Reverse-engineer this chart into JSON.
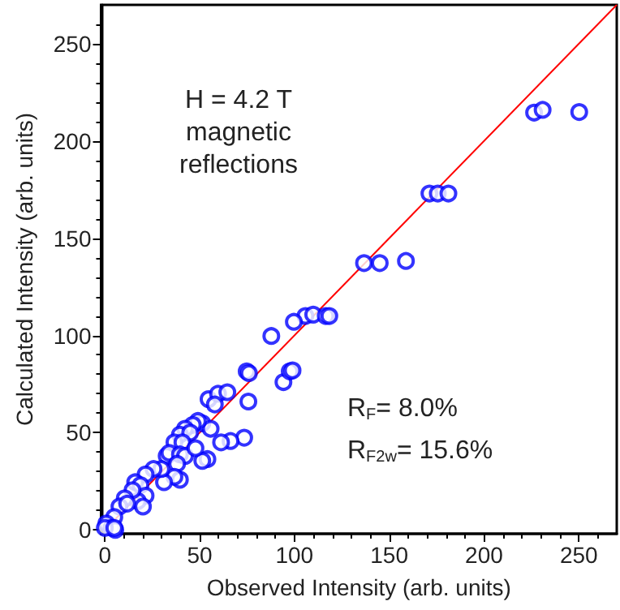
{
  "chart_data": {
    "type": "scatter",
    "xlabel": "Observed Intensity (arb. units)",
    "ylabel": "Calculated Intensity (arb. units)",
    "annotations": [
      "H = 4.2 T\nmagnetic\nreflections",
      "R$_{F}$= 8.0%",
      "R$_{F2w}$= 15.6%"
    ],
    "xlim": [
      -2,
      270
    ],
    "ylim": [
      -2,
      270
    ],
    "xticks": [
      0,
      50,
      100,
      150,
      200,
      250
    ],
    "yticks": [
      0,
      50,
      100,
      150,
      200,
      250
    ],
    "grid": false,
    "marker": "circle",
    "series": [
      {
        "color": "#0000ff",
        "x": [
          226.4,
          230.9,
          250.2,
          171.2,
          175.6,
          181.2,
          136.7,
          145,
          158.8,
          105.8,
          109.9,
          116.5,
          118.4,
          87.8,
          99.7,
          94.2,
          97.5,
          99,
          74.8,
          76,
          75.7,
          73.5,
          66.3,
          61.3,
          54.7,
          59.7,
          64.6,
          58,
          54.1,
          51.4,
          51.4,
          55.8,
          49.1,
          46.4,
          42.3,
          39.6,
          45,
          36.7,
          40.9,
          32.6,
          34,
          39.6,
          42.3,
          47.8,
          38.1,
          39.6,
          36.7,
          31.2,
          29.8,
          25.7,
          21.5,
          16,
          18.8,
          21.5,
          17.4,
          20.1,
          14.6,
          10.5,
          7.7,
          11.8,
          5,
          0.8,
          3.6,
          5.5,
          0,
          5
        ],
        "values": [
          214.6,
          216,
          214.9,
          173,
          173,
          173,
          137.2,
          137.2,
          138.3,
          110,
          110.7,
          110,
          110,
          99.7,
          107,
          76,
          81.5,
          82,
          81.5,
          80.6,
          66,
          47.4,
          45.7,
          45,
          67.2,
          70,
          70.8,
          64.5,
          36.4,
          35.5,
          54.8,
          52,
          56,
          54,
          52,
          49,
          50,
          45,
          45,
          38,
          39.6,
          38.8,
          38,
          42,
          34,
          25.8,
          27.3,
          24.5,
          31.3,
          31.3,
          28.5,
          24.5,
          23,
          17.6,
          14.8,
          12,
          20.4,
          16.2,
          12,
          13.5,
          6.6,
          3.3,
          1.1,
          0,
          1,
          1
        ]
      },
      {
        "type": "line",
        "color": "#ff0000",
        "marker": "none",
        "x": [
          0,
          270
        ],
        "values": [
          0,
          270
        ]
      }
    ]
  }
}
